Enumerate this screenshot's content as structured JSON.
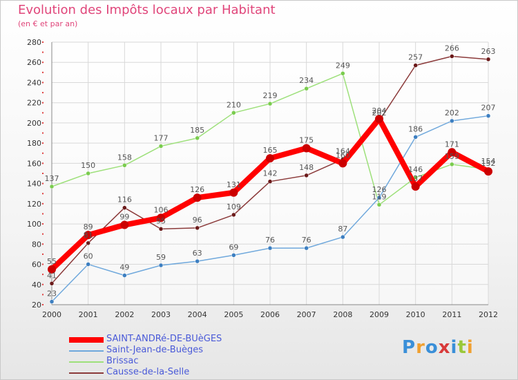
{
  "chart_data": {
    "type": "line",
    "title": "Evolution des Impôts locaux par Habitant",
    "subtitle": "(en € et par an)",
    "xlabel": "",
    "ylabel": "",
    "ylim": [
      20,
      280
    ],
    "ytick_step": 20,
    "grid": true,
    "legend_position": "bottom-left",
    "categories": [
      "2000",
      "2001",
      "2002",
      "2003",
      "2004",
      "2005",
      "2006",
      "2007",
      "2008",
      "2009",
      "2010",
      "2011",
      "2012"
    ],
    "series": [
      {
        "name": "SAINT-ANDRé-DE-BUèGES",
        "color": "#ff0000",
        "point_color": "#cc0000",
        "width": 8,
        "values": [
          55,
          89,
          99,
          106,
          126,
          131,
          165,
          175,
          160,
          204,
          137,
          171,
          152
        ]
      },
      {
        "name": "Saint-Jean-de-Buèges",
        "color": "#6fa8dc",
        "point_color": "#3d7fc1",
        "width": 1.5,
        "values": [
          23,
          60,
          49,
          59,
          63,
          69,
          76,
          76,
          87,
          126,
          186,
          202,
          207
        ]
      },
      {
        "name": "Brissac",
        "color": "#9de07a",
        "point_color": "#7acc4e",
        "width": 1.5,
        "values": [
          137,
          150,
          158,
          177,
          185,
          210,
          219,
          234,
          249,
          119,
          146,
          159,
          154
        ]
      },
      {
        "name": "Causse-de-la-Selle",
        "color": "#8b3a3a",
        "point_color": "#6b1a1a",
        "width": 1.5,
        "values": [
          41,
          81,
          116,
          95,
          96,
          109,
          142,
          148,
          164,
          202,
          257,
          266,
          263
        ]
      }
    ]
  },
  "logo": {
    "letters": [
      "P",
      "r",
      "o",
      "x",
      "i",
      "t",
      "i"
    ],
    "colors": [
      "#3a8fd8",
      "#f0a030",
      "#3a8fd8",
      "#d83a3a",
      "#3a8fd8",
      "#9ac83a",
      "#f0a030"
    ]
  }
}
